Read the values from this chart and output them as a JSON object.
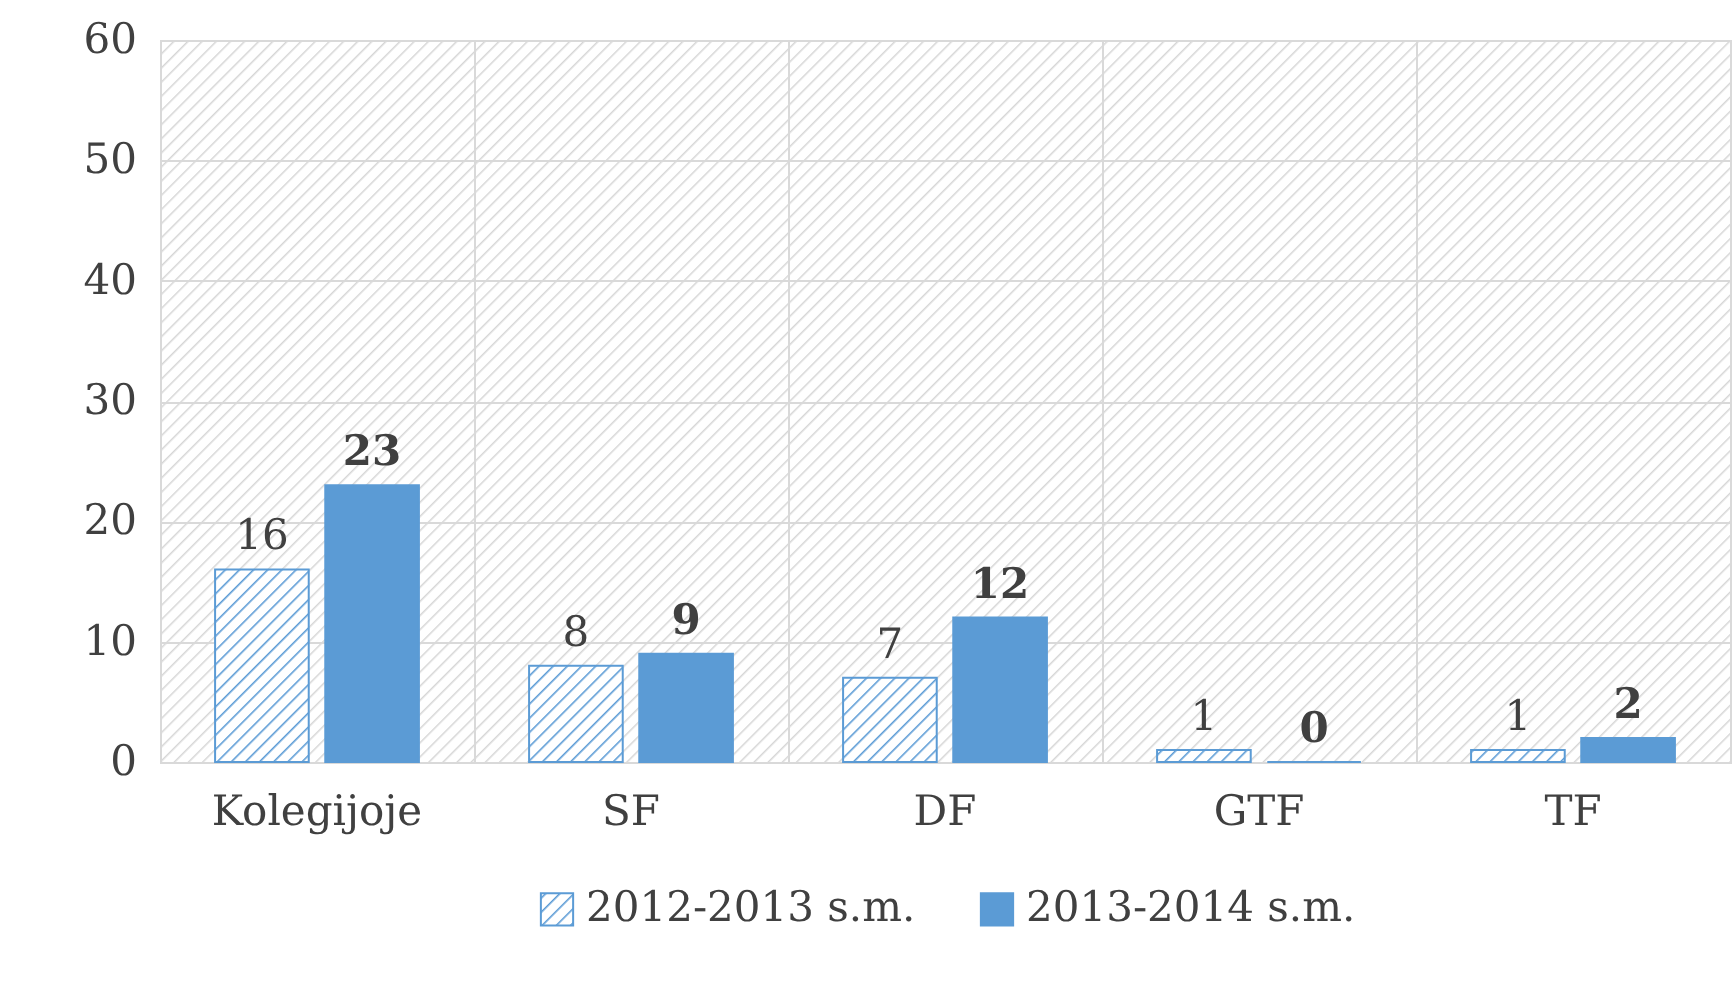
{
  "chart_data": {
    "type": "bar",
    "categories": [
      "Kolegijoje",
      "SF",
      "DF",
      "GTF",
      "TF"
    ],
    "series": [
      {
        "name": "2012-2013 s.m.",
        "color": "#5b9bd5",
        "values": [
          16,
          8,
          7,
          1,
          1
        ]
      },
      {
        "name": "2013-2014 s.m.",
        "color": "#5b9bd5",
        "values": [
          23,
          9,
          12,
          0,
          2
        ]
      }
    ],
    "ylim": [
      0,
      60
    ],
    "yticks": [
      0,
      10,
      20,
      30,
      40,
      50,
      60
    ],
    "grid": true,
    "legend": "bottom",
    "data_labels": true
  }
}
